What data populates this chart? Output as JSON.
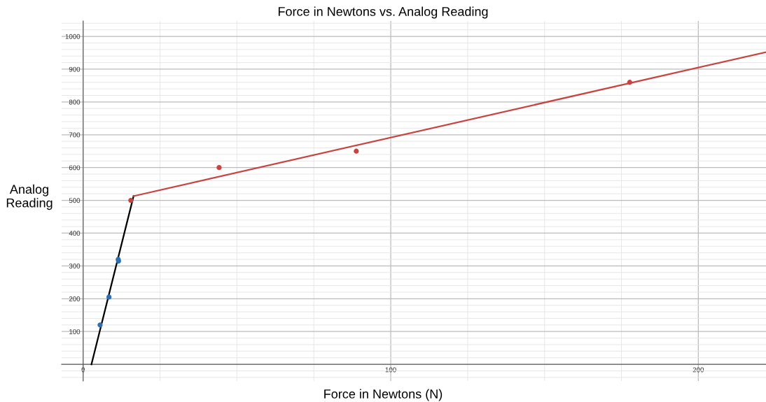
{
  "chart_data": {
    "type": "scatter",
    "title": "Force in Newtons vs. Analog Reading",
    "xlabel": "Force in Newtons (N)",
    "ylabel": "Analog\nReading",
    "xlim": [
      -7,
      222
    ],
    "ylim": [
      -51,
      1047
    ],
    "xticks": [
      0,
      100,
      200
    ],
    "yticks": [
      100,
      200,
      300,
      400,
      500,
      600,
      700,
      800,
      900,
      1000
    ],
    "grid": true,
    "marker": "circle",
    "series": [
      {
        "color": "#2d70b3",
        "x": [
          5.5,
          8.4,
          11.4,
          11.5
        ],
        "values": [
          120,
          205,
          320,
          315
        ]
      },
      {
        "color": "#c74440",
        "x": [
          15.5,
          44.2,
          88.8,
          177.7
        ],
        "values": [
          500,
          600,
          650,
          860
        ]
      },
      {
        "type": "line",
        "color": "#000000",
        "marker": "none",
        "x": [
          2.7,
          16.4
        ],
        "values": [
          0,
          513
        ]
      },
      {
        "type": "line",
        "color": "#c74440",
        "marker": "none",
        "x": [
          16.4,
          222
        ],
        "values": [
          513,
          952
        ]
      }
    ]
  }
}
